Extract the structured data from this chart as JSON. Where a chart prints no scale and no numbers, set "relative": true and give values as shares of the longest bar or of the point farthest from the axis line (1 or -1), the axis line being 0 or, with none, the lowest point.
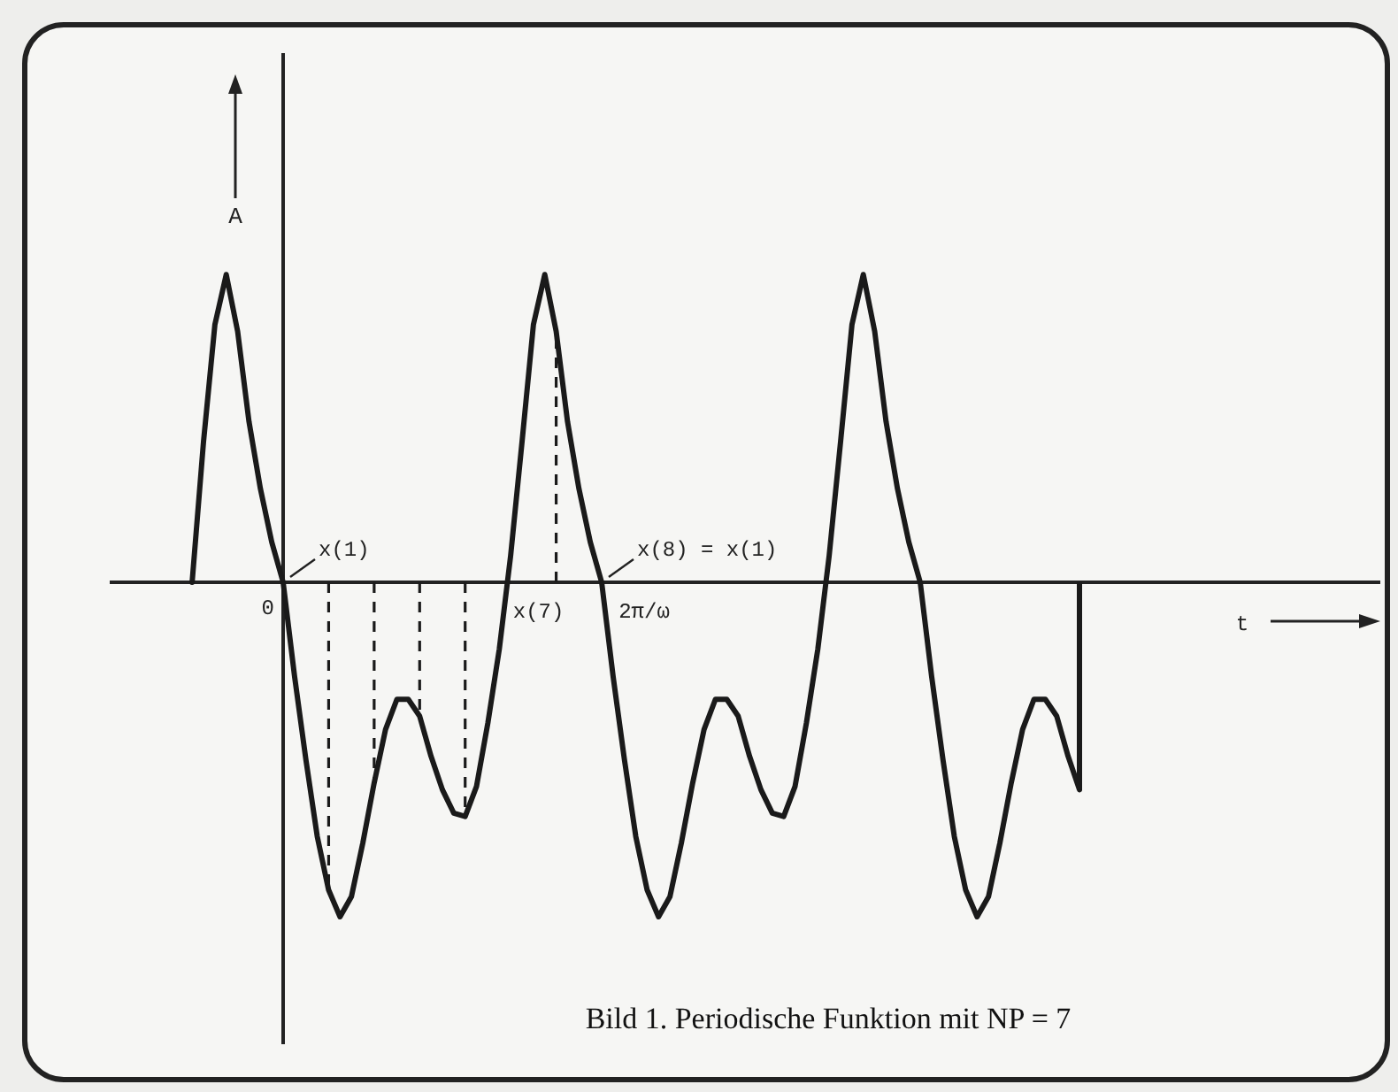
{
  "chart_data": {
    "type": "line",
    "title": "Bild 1. Periodische Funktion mit NP = 7",
    "xlabel": null,
    "ylabel": "A",
    "relative": true,
    "categories": [
      null,
      null,
      null,
      null,
      null,
      null,
      null,
      null,
      null,
      null,
      null,
      null,
      null,
      null,
      null,
      null,
      null,
      null,
      null,
      null,
      null,
      null,
      null,
      null,
      null,
      null,
      null,
      null,
      null,
      null,
      null,
      null,
      null,
      null,
      null,
      null,
      null,
      null,
      null,
      null,
      null,
      null,
      null,
      null,
      null,
      null,
      null,
      null,
      null,
      null,
      null,
      null,
      null,
      null,
      null,
      null,
      null,
      null,
      null,
      null,
      null,
      null,
      null,
      null,
      null,
      null,
      null,
      null,
      null,
      null,
      null,
      null,
      null,
      null,
      null,
      null,
      null,
      null,
      null
    ],
    "annotations": [
      "0",
      "x(1)",
      "x(7)",
      "2π/ω",
      "x(8) = x(1)",
      "t"
    ],
    "series": [
      {
        "color": "#1a1a1a",
        "marker": "none",
        "line_style": "solid",
        "values": [
          0,
          0.42,
          0.77,
          0.92,
          0.75,
          0.48,
          0.28,
          0.12,
          0,
          -0.28,
          -0.53,
          -0.76,
          -0.92,
          -1,
          -0.94,
          -0.78,
          -0.6,
          -0.44,
          -0.35,
          -0.35,
          -0.4,
          -0.52,
          -0.62,
          -0.69,
          -0.7,
          -0.61,
          -0.42,
          -0.2,
          0.08,
          0.42,
          0.77,
          0.92,
          0.75,
          0.48,
          0.28,
          0.12,
          0,
          -0.28,
          -0.53,
          -0.76,
          -0.92,
          -1,
          -0.94,
          -0.78,
          -0.6,
          -0.44,
          -0.35,
          -0.35,
          -0.4,
          -0.52,
          -0.62,
          -0.69,
          -0.7,
          -0.61,
          -0.42,
          -0.2,
          0.08,
          0.42,
          0.77,
          0.92,
          0.75,
          0.48,
          0.28,
          0.12,
          0,
          -0.28,
          -0.53,
          -0.76,
          -0.92,
          -1,
          -0.94,
          -0.78,
          -0.6,
          -0.44,
          -0.35,
          -0.35,
          -0.4,
          -0.52,
          -0.62
        ]
      }
    ]
  }
}
